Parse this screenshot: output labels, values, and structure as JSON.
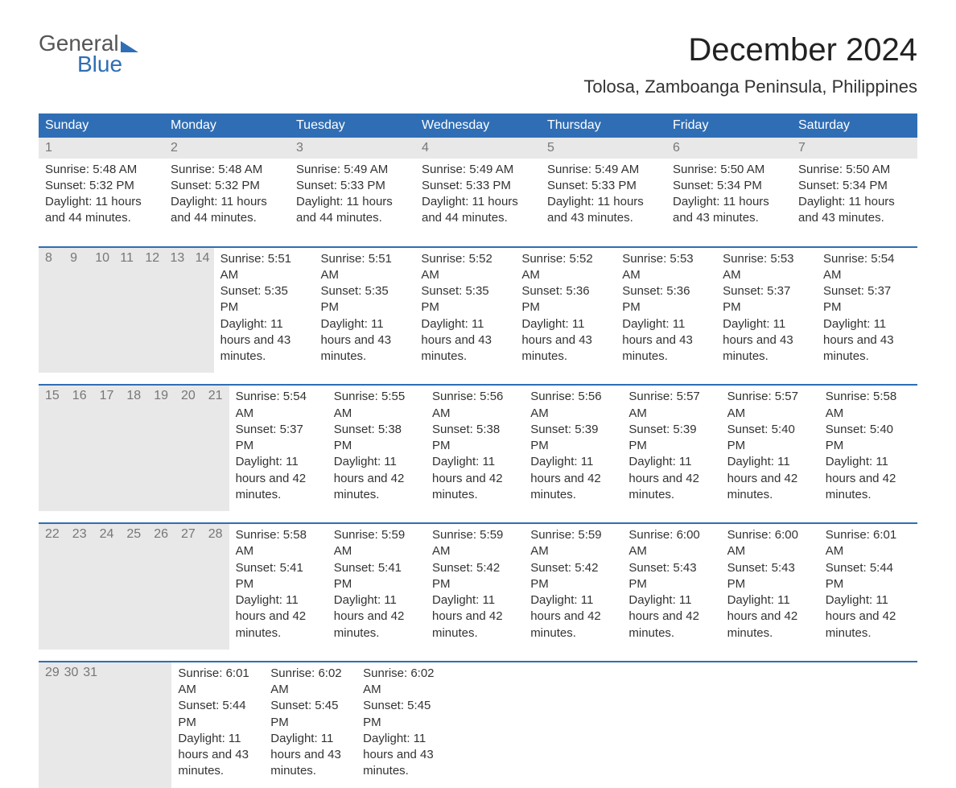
{
  "logo": {
    "line1": "General",
    "line2": "Blue"
  },
  "title": "December 2024",
  "location": "Tolosa, Zamboanga Peninsula, Philippines",
  "colors": {
    "header_bg": "#2f6eb5",
    "header_text": "#ffffff",
    "daynum_bg": "#e8e8e8",
    "daynum_text": "#777777",
    "body_text": "#333333",
    "accent": "#2f6eb5",
    "page_bg": "#ffffff"
  },
  "weekday_labels": [
    "Sunday",
    "Monday",
    "Tuesday",
    "Wednesday",
    "Thursday",
    "Friday",
    "Saturday"
  ],
  "weeks": [
    [
      {
        "day": "1",
        "sunrise": "Sunrise: 5:48 AM",
        "sunset": "Sunset: 5:32 PM",
        "daylight": "Daylight: 11 hours and 44 minutes."
      },
      {
        "day": "2",
        "sunrise": "Sunrise: 5:48 AM",
        "sunset": "Sunset: 5:32 PM",
        "daylight": "Daylight: 11 hours and 44 minutes."
      },
      {
        "day": "3",
        "sunrise": "Sunrise: 5:49 AM",
        "sunset": "Sunset: 5:33 PM",
        "daylight": "Daylight: 11 hours and 44 minutes."
      },
      {
        "day": "4",
        "sunrise": "Sunrise: 5:49 AM",
        "sunset": "Sunset: 5:33 PM",
        "daylight": "Daylight: 11 hours and 44 minutes."
      },
      {
        "day": "5",
        "sunrise": "Sunrise: 5:49 AM",
        "sunset": "Sunset: 5:33 PM",
        "daylight": "Daylight: 11 hours and 43 minutes."
      },
      {
        "day": "6",
        "sunrise": "Sunrise: 5:50 AM",
        "sunset": "Sunset: 5:34 PM",
        "daylight": "Daylight: 11 hours and 43 minutes."
      },
      {
        "day": "7",
        "sunrise": "Sunrise: 5:50 AM",
        "sunset": "Sunset: 5:34 PM",
        "daylight": "Daylight: 11 hours and 43 minutes."
      }
    ],
    [
      {
        "day": "8",
        "sunrise": "Sunrise: 5:51 AM",
        "sunset": "Sunset: 5:35 PM",
        "daylight": "Daylight: 11 hours and 43 minutes."
      },
      {
        "day": "9",
        "sunrise": "Sunrise: 5:51 AM",
        "sunset": "Sunset: 5:35 PM",
        "daylight": "Daylight: 11 hours and 43 minutes."
      },
      {
        "day": "10",
        "sunrise": "Sunrise: 5:52 AM",
        "sunset": "Sunset: 5:35 PM",
        "daylight": "Daylight: 11 hours and 43 minutes."
      },
      {
        "day": "11",
        "sunrise": "Sunrise: 5:52 AM",
        "sunset": "Sunset: 5:36 PM",
        "daylight": "Daylight: 11 hours and 43 minutes."
      },
      {
        "day": "12",
        "sunrise": "Sunrise: 5:53 AM",
        "sunset": "Sunset: 5:36 PM",
        "daylight": "Daylight: 11 hours and 43 minutes."
      },
      {
        "day": "13",
        "sunrise": "Sunrise: 5:53 AM",
        "sunset": "Sunset: 5:37 PM",
        "daylight": "Daylight: 11 hours and 43 minutes."
      },
      {
        "day": "14",
        "sunrise": "Sunrise: 5:54 AM",
        "sunset": "Sunset: 5:37 PM",
        "daylight": "Daylight: 11 hours and 43 minutes."
      }
    ],
    [
      {
        "day": "15",
        "sunrise": "Sunrise: 5:54 AM",
        "sunset": "Sunset: 5:37 PM",
        "daylight": "Daylight: 11 hours and 42 minutes."
      },
      {
        "day": "16",
        "sunrise": "Sunrise: 5:55 AM",
        "sunset": "Sunset: 5:38 PM",
        "daylight": "Daylight: 11 hours and 42 minutes."
      },
      {
        "day": "17",
        "sunrise": "Sunrise: 5:56 AM",
        "sunset": "Sunset: 5:38 PM",
        "daylight": "Daylight: 11 hours and 42 minutes."
      },
      {
        "day": "18",
        "sunrise": "Sunrise: 5:56 AM",
        "sunset": "Sunset: 5:39 PM",
        "daylight": "Daylight: 11 hours and 42 minutes."
      },
      {
        "day": "19",
        "sunrise": "Sunrise: 5:57 AM",
        "sunset": "Sunset: 5:39 PM",
        "daylight": "Daylight: 11 hours and 42 minutes."
      },
      {
        "day": "20",
        "sunrise": "Sunrise: 5:57 AM",
        "sunset": "Sunset: 5:40 PM",
        "daylight": "Daylight: 11 hours and 42 minutes."
      },
      {
        "day": "21",
        "sunrise": "Sunrise: 5:58 AM",
        "sunset": "Sunset: 5:40 PM",
        "daylight": "Daylight: 11 hours and 42 minutes."
      }
    ],
    [
      {
        "day": "22",
        "sunrise": "Sunrise: 5:58 AM",
        "sunset": "Sunset: 5:41 PM",
        "daylight": "Daylight: 11 hours and 42 minutes."
      },
      {
        "day": "23",
        "sunrise": "Sunrise: 5:59 AM",
        "sunset": "Sunset: 5:41 PM",
        "daylight": "Daylight: 11 hours and 42 minutes."
      },
      {
        "day": "24",
        "sunrise": "Sunrise: 5:59 AM",
        "sunset": "Sunset: 5:42 PM",
        "daylight": "Daylight: 11 hours and 42 minutes."
      },
      {
        "day": "25",
        "sunrise": "Sunrise: 5:59 AM",
        "sunset": "Sunset: 5:42 PM",
        "daylight": "Daylight: 11 hours and 42 minutes."
      },
      {
        "day": "26",
        "sunrise": "Sunrise: 6:00 AM",
        "sunset": "Sunset: 5:43 PM",
        "daylight": "Daylight: 11 hours and 42 minutes."
      },
      {
        "day": "27",
        "sunrise": "Sunrise: 6:00 AM",
        "sunset": "Sunset: 5:43 PM",
        "daylight": "Daylight: 11 hours and 42 minutes."
      },
      {
        "day": "28",
        "sunrise": "Sunrise: 6:01 AM",
        "sunset": "Sunset: 5:44 PM",
        "daylight": "Daylight: 11 hours and 42 minutes."
      }
    ],
    [
      {
        "day": "29",
        "sunrise": "Sunrise: 6:01 AM",
        "sunset": "Sunset: 5:44 PM",
        "daylight": "Daylight: 11 hours and 43 minutes."
      },
      {
        "day": "30",
        "sunrise": "Sunrise: 6:02 AM",
        "sunset": "Sunset: 5:45 PM",
        "daylight": "Daylight: 11 hours and 43 minutes."
      },
      {
        "day": "31",
        "sunrise": "Sunrise: 6:02 AM",
        "sunset": "Sunset: 5:45 PM",
        "daylight": "Daylight: 11 hours and 43 minutes."
      },
      null,
      null,
      null,
      null
    ]
  ]
}
